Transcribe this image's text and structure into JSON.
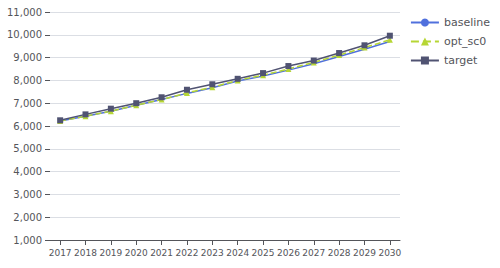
{
  "chart_data": {
    "type": "line",
    "x": [
      2017,
      2018,
      2019,
      2020,
      2021,
      2022,
      2023,
      2024,
      2025,
      2026,
      2027,
      2028,
      2029,
      2030
    ],
    "series": [
      {
        "name": "baseline",
        "marker": "none",
        "line_style": "solid",
        "values": [
          6220,
          6430,
          6650,
          6910,
          7160,
          7430,
          7680,
          7970,
          8190,
          8450,
          8730,
          9050,
          9370,
          9710
        ]
      },
      {
        "name": "opt_sc0",
        "marker": "triangle",
        "line_style": "dashed",
        "values": [
          6220,
          6430,
          6650,
          6910,
          7160,
          7450,
          7700,
          8000,
          8230,
          8500,
          8790,
          9110,
          9440,
          9780
        ]
      },
      {
        "name": "target",
        "marker": "square",
        "line_style": "solid",
        "values": [
          6250,
          6510,
          6760,
          7000,
          7260,
          7590,
          7830,
          8070,
          8320,
          8630,
          8870,
          9200,
          9540,
          9960
        ]
      }
    ],
    "xlim": [
      2016.6,
      2030.4
    ],
    "xticks": [
      2017,
      2018,
      2019,
      2020,
      2021,
      2022,
      2023,
      2024,
      2025,
      2026,
      2027,
      2028,
      2029,
      2030
    ],
    "ylim": [
      1000,
      11000
    ],
    "yticks": [
      {
        "value": 1000,
        "label": "1,000"
      },
      {
        "value": 2000,
        "label": "2,000"
      },
      {
        "value": 3000,
        "label": "3,000"
      },
      {
        "value": 4000,
        "label": "4,000"
      },
      {
        "value": 5000,
        "label": "5,000"
      },
      {
        "value": 6000,
        "label": "6,000"
      },
      {
        "value": 7000,
        "label": "7,000"
      },
      {
        "value": 8000,
        "label": "8,000"
      },
      {
        "value": 9000,
        "label": "9,000"
      },
      {
        "value": 10000,
        "label": "10,000"
      },
      {
        "value": 11000,
        "label": "11,000"
      }
    ],
    "grid": true,
    "legend": "right"
  }
}
